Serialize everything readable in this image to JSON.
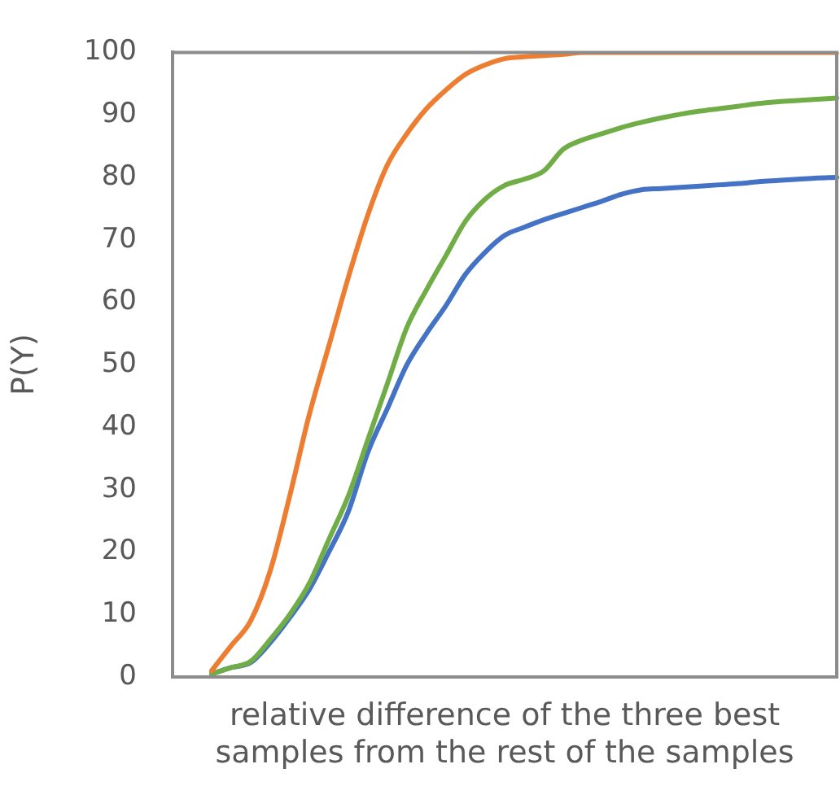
{
  "chart_data": {
    "type": "line",
    "ylabel": "P(Y)",
    "xlabel": "relative difference of the three best samples from the rest of the samples",
    "categories": [
      null,
      null,
      null,
      null,
      null,
      null,
      null,
      null,
      null,
      null,
      null,
      null,
      null,
      null,
      null,
      null,
      null,
      null,
      null,
      null,
      null,
      null,
      null,
      null,
      null,
      null,
      null,
      null,
      null,
      null,
      null,
      null,
      null,
      null,
      null
    ],
    "series": [
      {
        "color": "#ed7d31",
        "values": [
          null,
          null,
          1,
          5,
          9,
          17,
          29,
          42,
          53,
          64,
          74,
          82,
          87,
          91,
          94,
          96.5,
          98,
          99,
          99.3,
          99.5,
          99.7,
          100,
          100,
          100,
          100,
          100,
          100,
          100,
          100,
          100,
          100,
          100,
          100,
          100,
          100
        ]
      },
      {
        "color": "#70ad47",
        "values": [
          null,
          null,
          0.5,
          1.5,
          2.5,
          6,
          10,
          15,
          22,
          29,
          38,
          47,
          56,
          62,
          67.5,
          73,
          76.5,
          78.7,
          79.7,
          81,
          84.5,
          86,
          87,
          88,
          88.8,
          89.5,
          90.1,
          90.6,
          91,
          91.4,
          91.8,
          92.1,
          92.3,
          92.5,
          92.7
        ]
      },
      {
        "color": "#4472c4",
        "values": [
          null,
          null,
          0.5,
          1.5,
          2.3,
          5.5,
          9.5,
          14,
          20,
          26.5,
          36,
          43,
          50,
          55,
          59.5,
          64.5,
          68,
          70.7,
          72,
          73.2,
          74.2,
          75.2,
          76.2,
          77.3,
          78,
          78.2,
          78.4,
          78.6,
          78.8,
          79,
          79.3,
          79.5,
          79.7,
          79.9,
          80
        ]
      }
    ],
    "ylim": [
      0,
      100
    ],
    "yticks": [
      0,
      10,
      20,
      30,
      40,
      50,
      60,
      70,
      80,
      90,
      100
    ],
    "grid": false,
    "legend": false,
    "marker": "none",
    "line_style": "solid",
    "tick_labels": "y"
  }
}
